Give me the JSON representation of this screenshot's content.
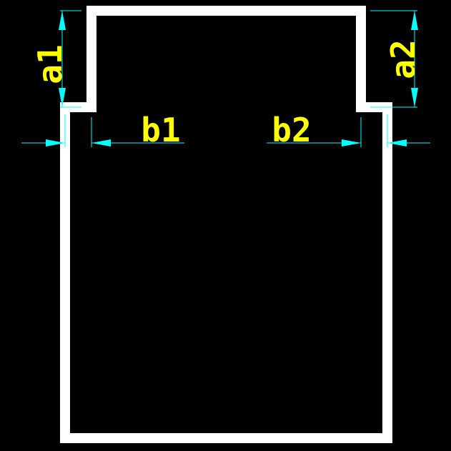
{
  "colors": {
    "background": "#000000",
    "outline": "#ffffff",
    "dimension_line": "#00ffff",
    "label": "#ffff00"
  },
  "labels": {
    "a1": "a1",
    "a2": "a2",
    "b1": "b1",
    "b2": "b2"
  }
}
